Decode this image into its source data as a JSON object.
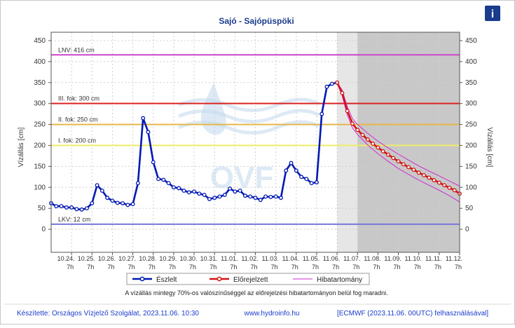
{
  "info_button_label": "i",
  "colors": {
    "frame": "#c8c8c8",
    "title": "#1a3c8c",
    "observed": "#0019b4",
    "forecast": "#d21414",
    "range": "#d22ad2",
    "lnv": "#cc44cc",
    "lkv": "#7777dd",
    "level3": "#dd2222",
    "level2": "#e6b84a",
    "level1": "#eeee66",
    "footer": "#1a3ccc"
  },
  "footer": {
    "left": "Készítette: Országos Vízjelző Szolgálat, 2023.11.06. 10:30",
    "center": "www.hydroinfo.hu",
    "right": "[ECMWF (2023.11.06. 00UTC) felhasználásával]"
  },
  "chart_data": {
    "type": "line",
    "title": "Sajó - Sajópüspöki",
    "ylabel": "Vízállás [cm]",
    "ylabel_right": "Vízállás [cm]",
    "ylim": [
      -55,
      470
    ],
    "yticks": [
      0,
      50,
      100,
      150,
      200,
      250,
      300,
      350,
      400,
      450
    ],
    "x_range": [
      0,
      20
    ],
    "x_ticks": [
      {
        "x": 1,
        "date": "10.24.",
        "hour": "7h"
      },
      {
        "x": 2,
        "date": "10.25.",
        "hour": "7h"
      },
      {
        "x": 3,
        "date": "10.26.",
        "hour": "7h"
      },
      {
        "x": 4,
        "date": "10.27.",
        "hour": "7h"
      },
      {
        "x": 5,
        "date": "10.28.",
        "hour": "7h"
      },
      {
        "x": 6,
        "date": "10.29.",
        "hour": "7h"
      },
      {
        "x": 7,
        "date": "10.30.",
        "hour": "7h"
      },
      {
        "x": 8,
        "date": "10.31.",
        "hour": "7h"
      },
      {
        "x": 9,
        "date": "11.01.",
        "hour": "7h"
      },
      {
        "x": 10,
        "date": "11.02.",
        "hour": "7h"
      },
      {
        "x": 11,
        "date": "11.03.",
        "hour": "7h"
      },
      {
        "x": 12,
        "date": "11.04.",
        "hour": "7h"
      },
      {
        "x": 13,
        "date": "11.05.",
        "hour": "7h"
      },
      {
        "x": 14,
        "date": "11.06.",
        "hour": "7h"
      },
      {
        "x": 15,
        "date": "11.07.",
        "hour": "7h"
      },
      {
        "x": 16,
        "date": "11.08.",
        "hour": "7h"
      },
      {
        "x": 17,
        "date": "11.09.",
        "hour": "7h"
      },
      {
        "x": 18,
        "date": "11.10.",
        "hour": "7h"
      },
      {
        "x": 19,
        "date": "11.11.",
        "hour": "7h"
      },
      {
        "x": 20,
        "date": "11.12.",
        "hour": "7h"
      }
    ],
    "reference_lines": [
      {
        "name": "LNV: 416 cm",
        "value": 416,
        "color": "#cc44cc"
      },
      {
        "name": "III. fok: 300 cm",
        "value": 300,
        "color": "#dd2222"
      },
      {
        "name": "II. fok: 250 cm",
        "value": 250,
        "color": "#e6b84a"
      },
      {
        "name": "I. fok: 200 cm",
        "value": 200,
        "color": "#eeee66"
      },
      {
        "name": "LKV: 12 cm",
        "value": 12,
        "color": "#7777dd"
      }
    ],
    "series": [
      {
        "name": "Észlelt",
        "color": "#0019b4",
        "x": [
          0,
          0.25,
          0.5,
          0.75,
          1,
          1.25,
          1.5,
          1.75,
          2,
          2.25,
          2.5,
          2.75,
          3,
          3.25,
          3.5,
          3.75,
          4,
          4.25,
          4.5,
          4.75,
          5,
          5.25,
          5.5,
          5.75,
          6,
          6.25,
          6.5,
          6.75,
          7,
          7.25,
          7.5,
          7.75,
          8,
          8.25,
          8.5,
          8.75,
          9,
          9.25,
          9.5,
          9.75,
          10,
          10.25,
          10.5,
          10.75,
          11,
          11.25,
          11.5,
          11.75,
          12,
          12.25,
          12.5,
          12.75,
          13,
          13.25,
          13.5,
          13.75,
          14
        ],
        "values": [
          62,
          55,
          55,
          52,
          52,
          48,
          47,
          50,
          62,
          105,
          92,
          75,
          68,
          63,
          62,
          58,
          60,
          110,
          265,
          232,
          160,
          120,
          118,
          110,
          100,
          98,
          92,
          88,
          90,
          85,
          82,
          72,
          75,
          78,
          82,
          97,
          90,
          92,
          80,
          78,
          75,
          70,
          78,
          77,
          78,
          75,
          140,
          158,
          140,
          125,
          120,
          110,
          112,
          275,
          340,
          347,
          350
        ]
      },
      {
        "name": "Előrejelzett",
        "color": "#d21414",
        "x": [
          14,
          14.25,
          14.5,
          14.75,
          15,
          15.25,
          15.5,
          15.75,
          16,
          16.25,
          16.5,
          16.75,
          17,
          17.25,
          17.5,
          17.75,
          18,
          18.25,
          18.5,
          18.75,
          19,
          19.25,
          19.5,
          19.75,
          20
        ],
        "values": [
          350,
          325,
          282,
          252,
          237,
          225,
          214,
          204,
          195,
          186,
          178,
          170,
          162,
          155,
          148,
          142,
          135,
          129,
          123,
          117,
          111,
          105,
          99,
          93,
          85
        ]
      },
      {
        "name": "Hibatartomány",
        "color": "#d22ad2",
        "x": [
          14,
          14.25,
          14.5,
          14.75,
          15,
          15.5,
          16,
          16.5,
          17,
          17.5,
          18,
          18.5,
          19,
          19.5,
          20
        ],
        "upper": [
          350,
          332,
          292,
          264,
          250,
          229,
          210,
          194,
          179,
          165,
          151,
          139,
          127,
          115,
          103
        ],
        "lower": [
          350,
          318,
          272,
          242,
          226,
          201,
          180,
          162,
          145,
          131,
          117,
          105,
          93,
          80,
          65
        ]
      }
    ],
    "legend": {
      "placement": "bottom",
      "entries": [
        "Észlelt",
        "Előrejelzett",
        "Hibatartomány"
      ]
    },
    "note": "A vízállás mintegy 70%-os valószínűséggel az előrejelzési hibatartományon belül fog maradni.",
    "grid": true,
    "watermark": "OVF"
  }
}
